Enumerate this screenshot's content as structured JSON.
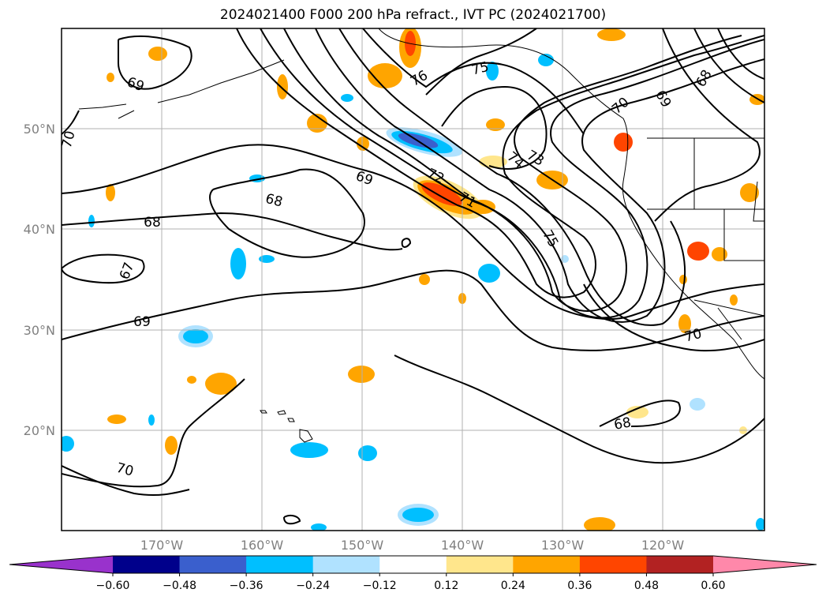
{
  "title": "2024021400 F000 200 hPa refract., IVT PC (2024021700)",
  "map": {
    "lat_labels": [
      "50°N",
      "40°N",
      "30°N",
      "20°N"
    ],
    "lon_labels": [
      "170°W",
      "160°W",
      "150°W",
      "140°W",
      "130°W",
      "120°W"
    ],
    "gridlines": true,
    "contour_labels": [
      "69",
      "70",
      "68",
      "68",
      "67",
      "69",
      "69",
      "68",
      "72",
      "71",
      "73",
      "74",
      "75",
      "75",
      "76",
      "75",
      "70",
      "69",
      "68",
      "70",
      "68",
      "70"
    ]
  },
  "colorbar": {
    "tick_labels": [
      "−0.60",
      "−0.48",
      "−0.36",
      "−0.24",
      "−0.12",
      "0.12",
      "0.24",
      "0.36",
      "0.48",
      "0.60"
    ],
    "colors": [
      "#9932cc",
      "#00008b",
      "#3a5fcd",
      "#00bfff",
      "#b0e2ff",
      "#ffffff",
      "#ffe68c",
      "#ffa500",
      "#ff4500",
      "#b22222",
      "#ff88aa"
    ],
    "extend": "both"
  },
  "layers": {
    "contours": "200 hPa refractivity (black lines)",
    "shading": "IVT PC (filled colors)"
  }
}
